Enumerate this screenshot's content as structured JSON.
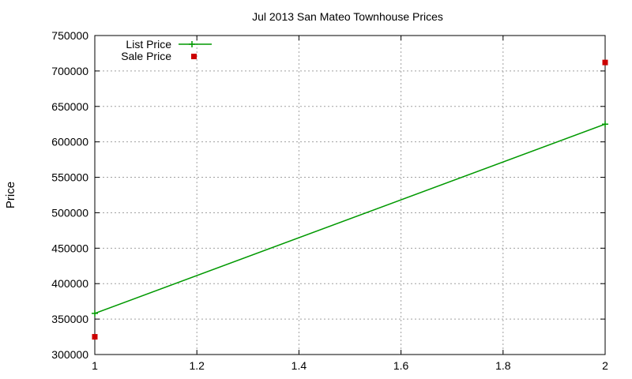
{
  "chart_data": {
    "type": "line",
    "title": "Jul 2013 San Mateo Townhouse Prices",
    "xlabel": "",
    "ylabel": "Price",
    "xlim": [
      1,
      2
    ],
    "ylim": [
      300000,
      750000
    ],
    "x_ticks": [
      "1",
      "1.2",
      "1.4",
      "1.6",
      "1.8",
      "2"
    ],
    "y_ticks": [
      "300000",
      "350000",
      "400000",
      "450000",
      "500000",
      "550000",
      "600000",
      "650000",
      "700000",
      "750000"
    ],
    "grid": true,
    "legend_position": "top-left",
    "series": [
      {
        "name": "List Price",
        "style": "line with plus markers",
        "color": "#009900",
        "x": [
          1,
          2
        ],
        "y": [
          358000,
          625000
        ]
      },
      {
        "name": "Sale Price",
        "style": "square points",
        "color": "#cc0000",
        "x": [
          1,
          2
        ],
        "y": [
          325000,
          712000
        ]
      }
    ]
  }
}
